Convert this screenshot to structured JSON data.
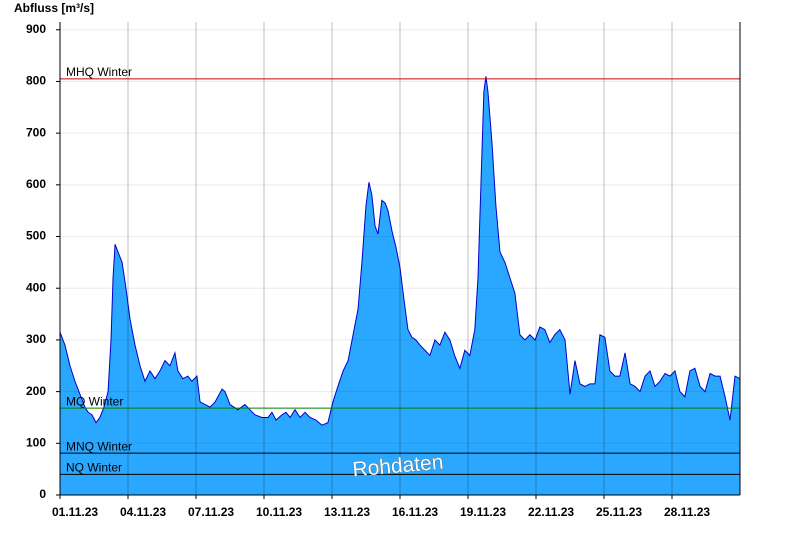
{
  "chart_data": {
    "type": "area",
    "y_label": "Abfluss [m³/s]",
    "watermark": "Rohdaten",
    "ylim": [
      0,
      915
    ],
    "yticks": [
      0,
      100,
      200,
      300,
      400,
      500,
      600,
      700,
      800,
      900
    ],
    "xlim": [
      0,
      30
    ],
    "xticks": [
      {
        "value": 0,
        "label": "01.11.23"
      },
      {
        "value": 3,
        "label": "04.11.23"
      },
      {
        "value": 6,
        "label": "07.11.23"
      },
      {
        "value": 9,
        "label": "10.11.23"
      },
      {
        "value": 12,
        "label": "13.11.23"
      },
      {
        "value": 15,
        "label": "16.11.23"
      },
      {
        "value": 18,
        "label": "19.11.23"
      },
      {
        "value": 21,
        "label": "22.11.23"
      },
      {
        "value": 24,
        "label": "25.11.23"
      },
      {
        "value": 27,
        "label": "28.11.23"
      }
    ],
    "grid": true,
    "fill_color": "#2aa8ff",
    "line_color": "#0000cc",
    "x": [
      0,
      0.22,
      0.44,
      0.66,
      0.88,
      1.1,
      1.24,
      1.41,
      1.59,
      1.76,
      1.94,
      2.12,
      2.25,
      2.34,
      2.43,
      2.56,
      2.74,
      2.91,
      3.09,
      3.31,
      3.53,
      3.75,
      3.97,
      4.19,
      4.41,
      4.63,
      4.85,
      5.07,
      5.2,
      5.42,
      5.64,
      5.82,
      6.04,
      6.18,
      6.4,
      6.62,
      6.84,
      7.15,
      7.28,
      7.5,
      7.85,
      8.16,
      8.38,
      8.6,
      8.91,
      9.18,
      9.35,
      9.53,
      9.79,
      9.97,
      10.15,
      10.37,
      10.59,
      10.81,
      11.03,
      11.29,
      11.56,
      11.82,
      12.04,
      12.26,
      12.49,
      12.71,
      12.93,
      13.15,
      13.32,
      13.5,
      13.63,
      13.76,
      13.9,
      14.03,
      14.2,
      14.34,
      14.47,
      14.65,
      14.82,
      15.0,
      15.17,
      15.35,
      15.53,
      15.7,
      15.88,
      16.1,
      16.32,
      16.54,
      16.76,
      16.98,
      17.2,
      17.41,
      17.64,
      17.86,
      18.08,
      18.3,
      18.44,
      18.57,
      18.7,
      18.79,
      18.88,
      19.06,
      19.23,
      19.41,
      19.63,
      19.85,
      20.07,
      20.29,
      20.51,
      20.73,
      20.96,
      21.17,
      21.39,
      21.61,
      21.83,
      22.05,
      22.28,
      22.5,
      22.72,
      22.94,
      23.16,
      23.38,
      23.6,
      23.82,
      24.04,
      24.26,
      24.48,
      24.7,
      24.93,
      25.15,
      25.37,
      25.59,
      25.81,
      26.03,
      26.25,
      26.47,
      26.69,
      26.91,
      27.13,
      27.35,
      27.57,
      27.79,
      28.01,
      28.24,
      28.46,
      28.68,
      28.9,
      29.12,
      29.34,
      29.56,
      29.78,
      30
    ],
    "values": [
      315,
      290,
      250,
      220,
      195,
      170,
      160,
      155,
      140,
      150,
      170,
      200,
      300,
      420,
      485,
      470,
      450,
      400,
      340,
      290,
      250,
      220,
      240,
      225,
      240,
      260,
      250,
      275,
      240,
      225,
      230,
      220,
      230,
      180,
      175,
      170,
      180,
      205,
      200,
      175,
      165,
      175,
      165,
      155,
      150,
      150,
      160,
      145,
      155,
      160,
      150,
      165,
      150,
      160,
      150,
      145,
      135,
      140,
      180,
      210,
      240,
      260,
      310,
      360,
      450,
      560,
      605,
      580,
      520,
      505,
      570,
      565,
      550,
      510,
      480,
      440,
      380,
      320,
      305,
      300,
      290,
      280,
      270,
      300,
      290,
      315,
      300,
      270,
      245,
      280,
      270,
      320,
      420,
      600,
      780,
      810,
      780,
      680,
      560,
      470,
      450,
      420,
      390,
      310,
      300,
      310,
      300,
      325,
      320,
      295,
      310,
      320,
      300,
      195,
      260,
      215,
      210,
      215,
      215,
      310,
      305,
      240,
      230,
      230,
      275,
      215,
      210,
      200,
      230,
      240,
      210,
      220,
      235,
      230,
      240,
      200,
      190,
      240,
      245,
      210,
      200,
      235,
      230,
      230,
      190,
      145,
      230,
      225
    ],
    "reference_lines": [
      {
        "label": "MHQ Winter",
        "value": 805,
        "color": "#cc0000"
      },
      {
        "label": "MQ Winter",
        "value": 168,
        "color": "#008000"
      },
      {
        "label": "MNQ Winter",
        "value": 81,
        "color": "#000000"
      },
      {
        "label": "NQ Winter",
        "value": 40,
        "color": "#000000"
      }
    ]
  }
}
